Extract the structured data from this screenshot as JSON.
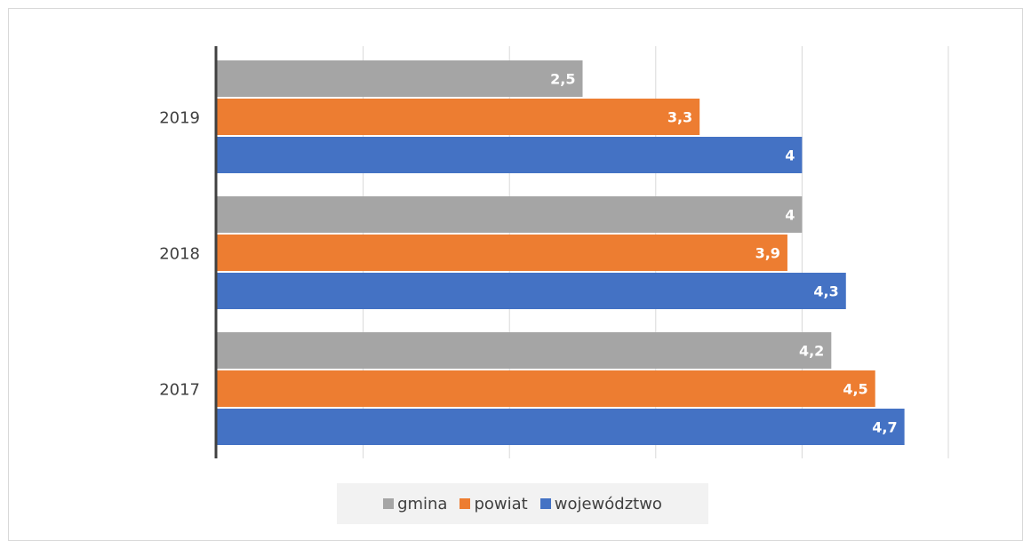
{
  "chart_data": {
    "type": "bar",
    "orientation": "horizontal",
    "categories": [
      "2019",
      "2018",
      "2017"
    ],
    "series": [
      {
        "name": "gmina",
        "color": "#a5a5a5",
        "values": [
          2.5,
          4,
          4.2
        ],
        "labels": [
          "2,5",
          "4",
          "4,2"
        ]
      },
      {
        "name": "powiat",
        "color": "#ed7d31",
        "values": [
          3.3,
          3.9,
          4.5
        ],
        "labels": [
          "3,3",
          "3,9",
          "4,5"
        ]
      },
      {
        "name": "województwo",
        "color": "#4472c4",
        "values": [
          4,
          4.3,
          4.7
        ],
        "labels": [
          "4",
          "4,3",
          "4,7"
        ]
      }
    ],
    "xlim": [
      0,
      5
    ],
    "grid": true,
    "legend_position": "bottom",
    "title": "",
    "xlabel": "",
    "ylabel": ""
  }
}
